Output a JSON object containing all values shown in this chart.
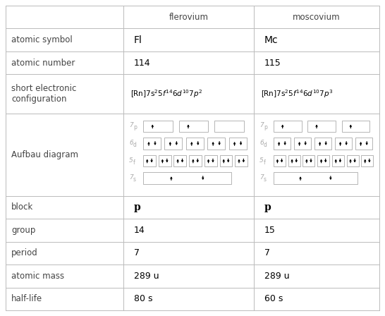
{
  "col_headers": [
    "flerovium",
    "moscovium"
  ],
  "row_labels": [
    "atomic symbol",
    "atomic number",
    "short electronic\nconfiguration",
    "Aufbau diagram",
    "block",
    "group",
    "period",
    "atomic mass",
    "half-life"
  ],
  "fl_symbol": "Fl",
  "mc_symbol": "Mc",
  "fl_number": "114",
  "mc_number": "115",
  "fl_config": "[Rn]7s$^2$5$f^{14}$6$d^{10}$7$p^2$",
  "mc_config": "[Rn]7s$^2$5$f^{14}$6$d^{10}$7$p^3$",
  "fl_block": "p",
  "mc_block": "p",
  "fl_group": "14",
  "mc_group": "15",
  "fl_period": "7",
  "mc_period": "7",
  "fl_mass": "289 u",
  "mc_mass": "289 u",
  "fl_halflife": "80 s",
  "mc_halflife": "60 s",
  "fl_7p_electrons": 2,
  "mc_7p_electrons": 3,
  "background_color": "#ffffff",
  "border_color": "#bbbbbb",
  "text_color": "#000000",
  "label_color": "#444444",
  "orbital_label_color": "#aaaaaa"
}
